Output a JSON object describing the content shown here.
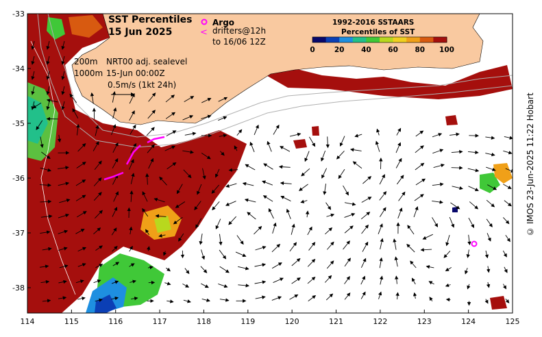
{
  "map": {
    "title_line1": "SST Percentiles",
    "title_line2": "15 Jun 2025",
    "argo_label": "Argo",
    "drifters_line1": "drifters@12h",
    "drifters_line2": "to 16/06 12Z",
    "contour_200": "200m",
    "contour_1000": "1000m",
    "sealevel_line1": "NRT00 adj. sealevel",
    "sealevel_line2": "15-Jun 00:00Z",
    "scale_label": "0.5m/s (1kt 24h)",
    "credit": "© IMOS 23-Jun-2025 11:22 Hobart",
    "colors": {
      "land": "#f9c9a0",
      "hot": "#a50f0d",
      "argo": "#ff00ff",
      "drifter": "#ff00ff"
    }
  },
  "legend": {
    "title_line1": "1992-2016 SSTAARS",
    "title_line2": "Percentiles of SST",
    "ticks": [
      "0",
      "20",
      "40",
      "60",
      "80",
      "100"
    ],
    "colors": [
      "#08086b",
      "#0b3fb5",
      "#1e8fe0",
      "#22c08a",
      "#40c838",
      "#b8d81e",
      "#f0d020",
      "#f0a018",
      "#d85a10",
      "#a50f0d"
    ]
  },
  "axes": {
    "lon_ticks": [
      "114",
      "115",
      "116",
      "117",
      "118",
      "119",
      "120",
      "121",
      "122",
      "123",
      "124",
      "125"
    ],
    "lat_ticks": [
      "-33",
      "-34",
      "-35",
      "-36",
      "-37",
      "-38"
    ]
  }
}
